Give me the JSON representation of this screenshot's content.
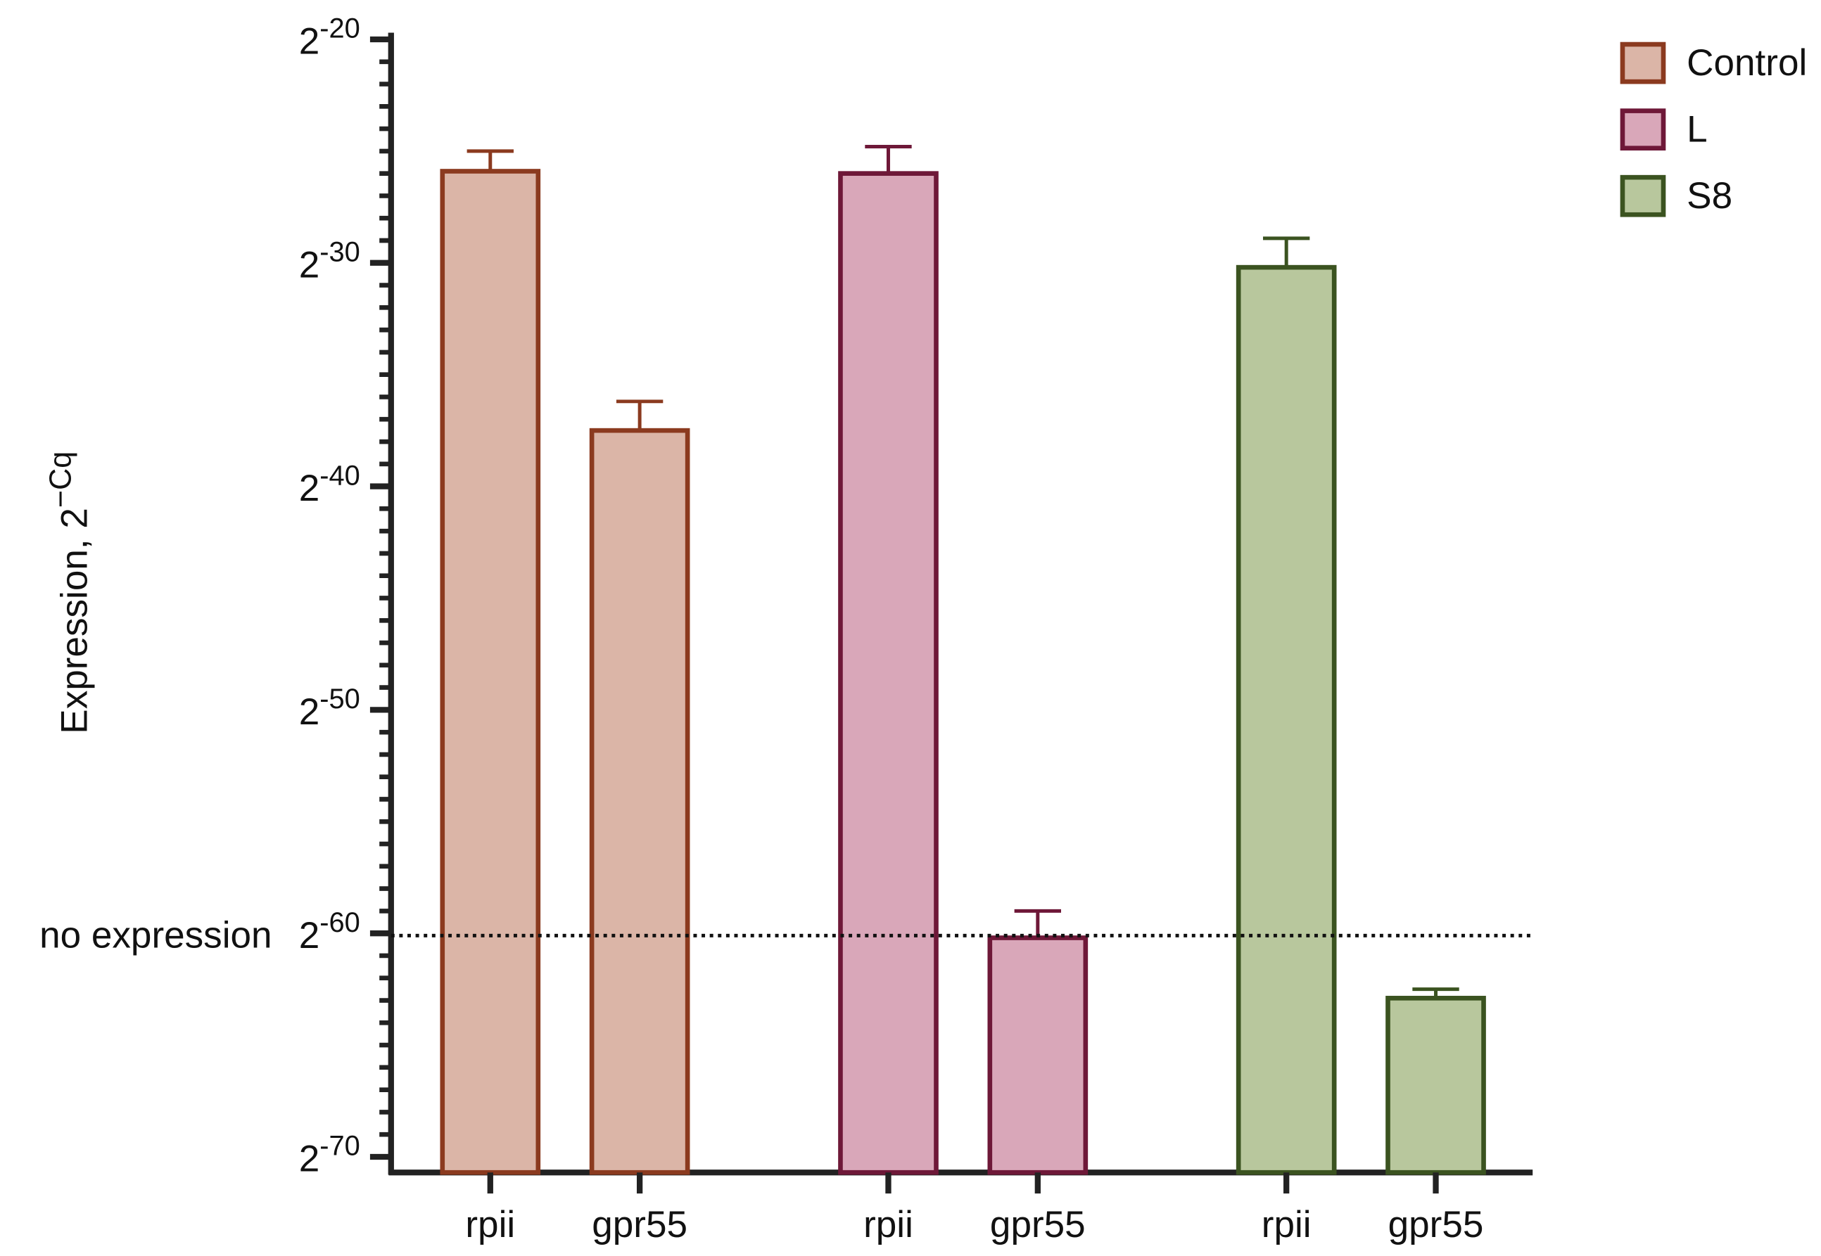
{
  "chart_data": {
    "type": "bar",
    "y_label": "Expression, 2−Cq",
    "ylim": [
      -70.7,
      -19.7
    ],
    "yticks": [
      {
        "value": -20,
        "label": "2-20"
      },
      {
        "value": -30,
        "label": "2-30"
      },
      {
        "value": -40,
        "label": "2-40"
      },
      {
        "value": -50,
        "label": "2-50"
      },
      {
        "value": -60,
        "label": "2-60"
      },
      {
        "value": -70,
        "label": "2-70"
      }
    ],
    "minor_tick_interval": 1,
    "reference_line": {
      "value": -60.1,
      "label": "no expression"
    },
    "series": [
      {
        "name": "Control",
        "color": "#dbb5a7",
        "edge_color": "#8b3a1f",
        "categories": [
          "rpii",
          "gpr55"
        ],
        "values": [
          -25.9,
          -37.5
        ],
        "errors": [
          0.9,
          1.3
        ]
      },
      {
        "name": "L",
        "color": "#d9a7b9",
        "edge_color": "#6e1838",
        "categories": [
          "rpii",
          "gpr55"
        ],
        "values": [
          -26.0,
          -60.2
        ],
        "errors": [
          1.2,
          1.2
        ]
      },
      {
        "name": "S8",
        "color": "#b8c79d",
        "edge_color": "#3b5320",
        "categories": [
          "rpii",
          "gpr55"
        ],
        "values": [
          -30.2,
          -62.9
        ],
        "errors": [
          1.3,
          0.4
        ]
      }
    ]
  }
}
